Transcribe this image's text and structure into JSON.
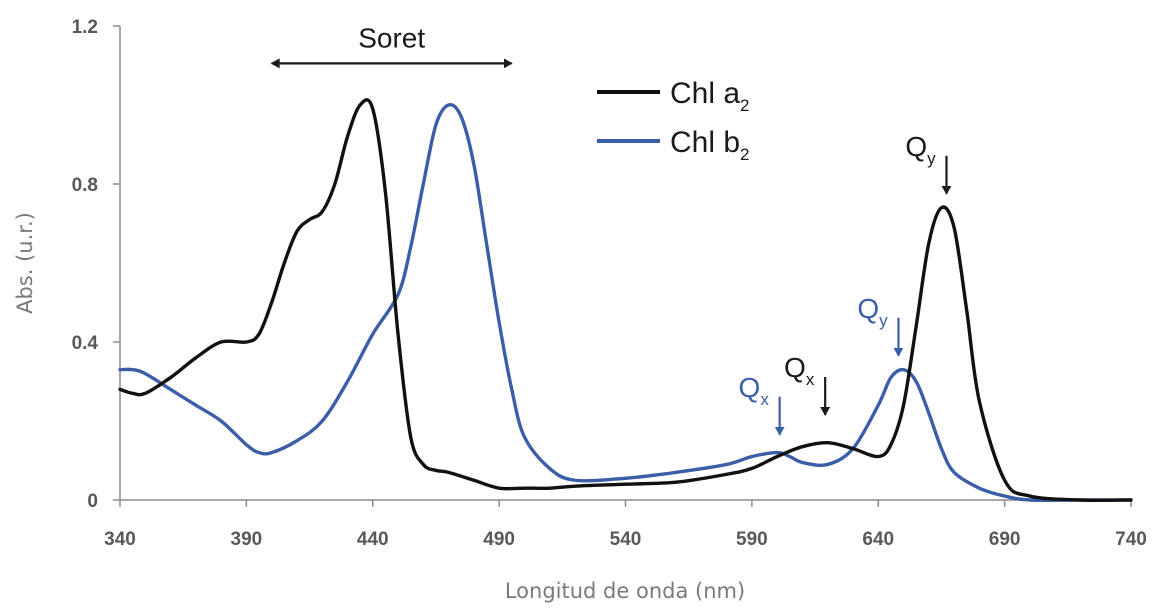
{
  "chart_data": {
    "type": "line",
    "xlabel": "Longitud de onda (nm)",
    "ylabel": "Abs.  (u.r.)",
    "xlim": [
      340,
      740
    ],
    "ylim": [
      0,
      1.2
    ],
    "x_ticks": [
      340,
      390,
      440,
      490,
      540,
      590,
      640,
      690,
      740
    ],
    "y_ticks": [
      0,
      0.4,
      0.8,
      1.2
    ],
    "y_tick_labels": [
      "0",
      "0.4",
      "0.8",
      "1.2"
    ],
    "grid": false,
    "legend_position": "top-center",
    "series": [
      {
        "name": "Chl a",
        "name_sub": "2",
        "color": "#111111",
        "x": [
          340,
          345,
          350,
          360,
          370,
          380,
          390,
          395,
          400,
          405,
          410,
          415,
          420,
          425,
          430,
          435,
          440,
          445,
          450,
          455,
          460,
          465,
          470,
          480,
          490,
          500,
          510,
          520,
          540,
          560,
          580,
          590,
          600,
          610,
          620,
          630,
          640,
          645,
          650,
          655,
          660,
          665,
          670,
          675,
          680,
          690,
          700,
          720,
          740
        ],
        "y": [
          0.28,
          0.27,
          0.27,
          0.31,
          0.36,
          0.4,
          0.4,
          0.42,
          0.5,
          0.6,
          0.68,
          0.71,
          0.73,
          0.8,
          0.92,
          1.0,
          0.99,
          0.78,
          0.42,
          0.16,
          0.09,
          0.075,
          0.07,
          0.05,
          0.03,
          0.03,
          0.03,
          0.035,
          0.04,
          0.045,
          0.065,
          0.08,
          0.11,
          0.135,
          0.145,
          0.13,
          0.11,
          0.14,
          0.24,
          0.44,
          0.65,
          0.74,
          0.69,
          0.48,
          0.25,
          0.05,
          0.01,
          0.0,
          0.0
        ]
      },
      {
        "name": "Chl b",
        "name_sub": "2",
        "color": "#3b5ea8",
        "x": [
          340,
          345,
          350,
          360,
          370,
          380,
          390,
          395,
          400,
          410,
          420,
          430,
          440,
          450,
          455,
          460,
          465,
          470,
          475,
          480,
          485,
          490,
          495,
          500,
          510,
          520,
          540,
          560,
          580,
          590,
          600,
          605,
          610,
          620,
          630,
          640,
          645,
          650,
          655,
          660,
          665,
          670,
          680,
          690,
          700,
          720,
          740
        ],
        "y": [
          0.33,
          0.33,
          0.32,
          0.28,
          0.24,
          0.2,
          0.14,
          0.12,
          0.12,
          0.15,
          0.2,
          0.3,
          0.42,
          0.52,
          0.64,
          0.8,
          0.95,
          1.0,
          0.97,
          0.85,
          0.65,
          0.45,
          0.28,
          0.16,
          0.08,
          0.05,
          0.055,
          0.07,
          0.09,
          0.11,
          0.12,
          0.11,
          0.095,
          0.09,
          0.13,
          0.24,
          0.31,
          0.33,
          0.3,
          0.22,
          0.13,
          0.07,
          0.03,
          0.01,
          0.0,
          0.0,
          0.0
        ]
      }
    ],
    "annotations": [
      {
        "id": "soret",
        "text": "Soret",
        "x1": 400,
        "x2": 495,
        "y": 1.07,
        "color": "#1a1a1a"
      },
      {
        "id": "qy-a",
        "text": "Q",
        "sub": "y",
        "x": 667,
        "y": 0.76,
        "color": "#1a1a1a"
      },
      {
        "id": "qy-b",
        "text": "Q",
        "sub": "y",
        "x": 648,
        "y": 0.35,
        "color": "#3b5ea8"
      },
      {
        "id": "qx-a",
        "text": "Q",
        "sub": "x",
        "x": 619,
        "y": 0.2,
        "color": "#1a1a1a"
      },
      {
        "id": "qx-b",
        "text": "Q",
        "sub": "x",
        "x": 601,
        "y": 0.15,
        "color": "#3b5ea8"
      }
    ]
  }
}
